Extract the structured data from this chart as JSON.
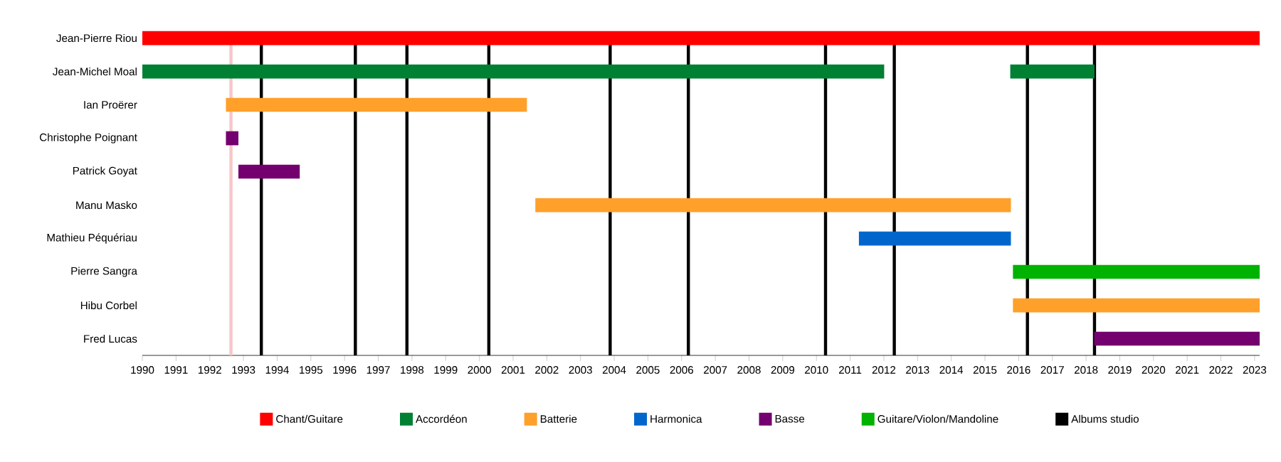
{
  "chart_data": {
    "type": "bar",
    "orientation": "horizontal",
    "categories": [
      "Jean-Pierre Riou",
      "Jean-Michel Moal",
      "Ian Proërer",
      "Christophe Poignant",
      "Patrick Goyat",
      "Manu Masko",
      "Mathieu Péquériau",
      "Pierre Sangra",
      "Hibu Corbel",
      "Fred Lucas"
    ],
    "series": [
      {
        "name": "Chant/Guitare",
        "color": "#ff0000",
        "values": [
          33.15,
          null,
          null,
          null,
          null,
          null,
          null,
          null,
          null,
          null
        ],
        "base": [
          1990,
          null,
          null,
          null,
          null,
          null,
          null,
          null,
          null,
          null
        ]
      },
      {
        "name": "Accordéon",
        "color": "#008033",
        "values": [
          null,
          22.01,
          null,
          null,
          null,
          null,
          null,
          null,
          null,
          null
        ],
        "base": [
          null,
          1990,
          null,
          null,
          null,
          null,
          null,
          null,
          null,
          null
        ]
      },
      {
        "name": "Batterie",
        "color": "#ffa02a",
        "values": [
          null,
          null,
          8.93,
          null,
          null,
          14.11,
          null,
          null,
          7.32,
          null
        ],
        "base": [
          null,
          null,
          1992.48,
          null,
          null,
          2001.66,
          null,
          null,
          2015.83,
          null
        ]
      },
      {
        "name": "Harmonica",
        "color": "#0066cc",
        "values": [
          null,
          null,
          null,
          null,
          null,
          null,
          4.51,
          null,
          null,
          null
        ],
        "base": [
          null,
          null,
          null,
          null,
          null,
          null,
          2011.26,
          null,
          null,
          null
        ]
      },
      {
        "name": "Basse",
        "color": "#73006e",
        "values": [
          null,
          null,
          null,
          0.37,
          1.82,
          null,
          null,
          null,
          null,
          4.91
        ],
        "base": [
          null,
          null,
          null,
          1992.48,
          1992.85,
          null,
          null,
          null,
          null,
          2018.24
        ]
      },
      {
        "name": "Guitare/Violon/Mandoline",
        "color": "#00b300",
        "values": [
          null,
          null,
          null,
          null,
          null,
          null,
          null,
          7.32,
          null,
          null
        ],
        "base": [
          null,
          null,
          null,
          null,
          null,
          null,
          null,
          2015.83,
          null,
          null
        ]
      },
      {
        "color": "#008033",
        "values": [
          null,
          2.5,
          null,
          null,
          null,
          null,
          null,
          null,
          null,
          null
        ],
        "base": [
          null,
          2015.75,
          null,
          null,
          null,
          null,
          null,
          null,
          null,
          null
        ]
      }
    ],
    "xlim": [
      1990,
      2023.15
    ],
    "xticks": [
      1990,
      1991,
      1992,
      1993,
      1994,
      1995,
      1996,
      1997,
      1998,
      1999,
      2000,
      2001,
      2002,
      2003,
      2004,
      2005,
      2006,
      2007,
      2008,
      2009,
      2010,
      2011,
      2012,
      2013,
      2014,
      2015,
      2016,
      2017,
      2018,
      2019,
      2020,
      2021,
      2022,
      2023
    ],
    "ref_lines": [
      {
        "axis": "x",
        "value": 1992.63,
        "color": "#f6c6c8"
      },
      {
        "axis": "x",
        "value": 1993.53,
        "color": "#000000",
        "label": "Albums studio"
      },
      {
        "axis": "x",
        "value": 1996.32,
        "color": "#000000"
      },
      {
        "axis": "x",
        "value": 1997.85,
        "color": "#000000"
      },
      {
        "axis": "x",
        "value": 2000.28,
        "color": "#000000"
      },
      {
        "axis": "x",
        "value": 2003.88,
        "color": "#000000"
      },
      {
        "axis": "x",
        "value": 2006.2,
        "color": "#000000"
      },
      {
        "axis": "x",
        "value": 2010.27,
        "color": "#000000"
      },
      {
        "axis": "x",
        "value": 2012.31,
        "color": "#000000"
      },
      {
        "axis": "x",
        "value": 2016.26,
        "color": "#000000"
      },
      {
        "axis": "x",
        "value": 2018.25,
        "color": "#000000"
      }
    ],
    "legend": "bottom"
  }
}
